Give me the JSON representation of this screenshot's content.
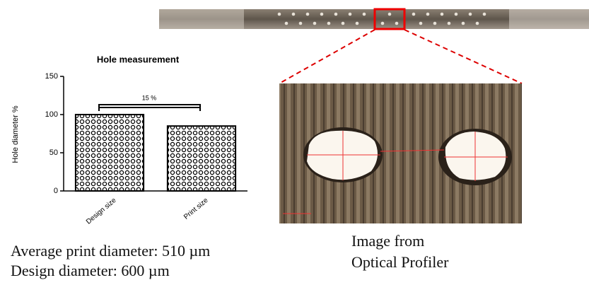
{
  "chart_data": {
    "type": "bar",
    "title": "Hole measurement",
    "y_label": "Hole diameter %",
    "categories": [
      "Design size",
      "Print size"
    ],
    "values": [
      100,
      85
    ],
    "color": "#000000",
    "ylim": [
      0,
      150
    ],
    "yticks": [
      0,
      50,
      100,
      150
    ],
    "grid": false,
    "annotation": "15 %"
  },
  "captions": {
    "left": [
      "Average print diameter: 510 µm",
      "Design diameter: 600 µm"
    ],
    "right": [
      "Image from",
      "Optical Profiler"
    ]
  }
}
